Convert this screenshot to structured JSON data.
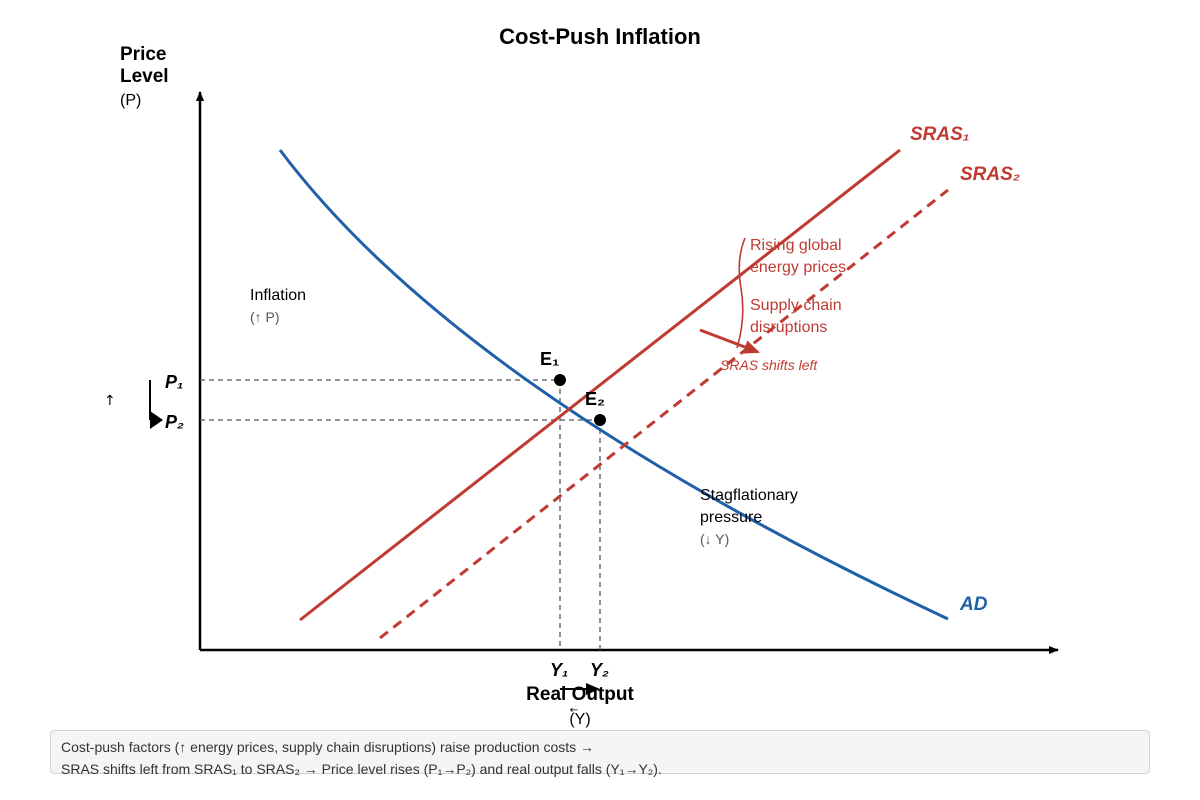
{
  "title": "Cost-Push Inflation",
  "y_axis": {
    "line1": "Price",
    "line2": "Level",
    "symbol": "(P)"
  },
  "x_axis": {
    "label": "Real Output",
    "symbol": "(Y)"
  },
  "curves": {
    "ad": {
      "label": "AD",
      "color": "#2160a8"
    },
    "sras1": {
      "label": "SRAS₁",
      "color": "#bf3b32"
    },
    "sras2": {
      "label": "SRAS₂",
      "color": "#bf3b32"
    }
  },
  "points": {
    "e1": {
      "label": "E₁"
    },
    "e2": {
      "label": "E₂"
    }
  },
  "ticks": {
    "p1": "P₁",
    "p2": "P₂",
    "y1": "Y₁",
    "y2": "Y₂"
  },
  "markers": {
    "up_arrow": "↑",
    "small_left_arrow": "←"
  },
  "annotations": {
    "inflation": "Inflation",
    "inflation_sub": "(↑ P)",
    "stag_line1": "Stagflationary",
    "stag_line2": "pressure",
    "stag_sub": "(↓ Y)",
    "factor1_line1": "Rising global",
    "factor1_line2": "energy prices",
    "factor2_line1": "Supply chain",
    "factor2_line2": "disruptions",
    "shift_note": "SRAS shifts left"
  },
  "caption": {
    "line1": "Cost-push factors (↑ energy prices, supply chain disruptions) raise production costs →",
    "line2": "SRAS shifts left from SRAS₁ to SRAS₂ → Price level rises (P₁→P₂) and real output falls (Y₁→Y₂)."
  }
}
